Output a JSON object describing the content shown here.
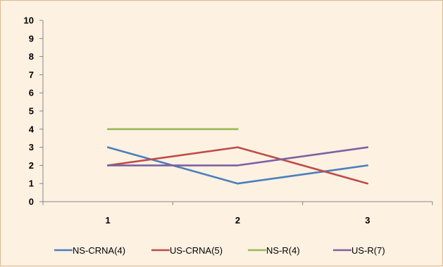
{
  "chart_data": {
    "type": "line",
    "title": "",
    "xlabel": "",
    "ylabel": "",
    "categories": [
      "1",
      "2",
      "3"
    ],
    "ylim": [
      0,
      10
    ],
    "yticks": [
      "0",
      "1",
      "2",
      "3",
      "4",
      "5",
      "6",
      "7",
      "8",
      "9",
      "10"
    ],
    "grid": false,
    "legend_position": "bottom",
    "series": [
      {
        "name": "NS-CRNA(4)",
        "color": "#4a7ebb",
        "values": [
          3,
          1,
          2
        ]
      },
      {
        "name": "US-CRNA(5)",
        "color": "#be4b48",
        "values": [
          2,
          3,
          1
        ]
      },
      {
        "name": "NS-R(4)",
        "color": "#98b954",
        "values": [
          4,
          4,
          null
        ]
      },
      {
        "name": "US-R(7)",
        "color": "#7d60a0",
        "values": [
          2,
          2,
          3
        ]
      }
    ]
  }
}
